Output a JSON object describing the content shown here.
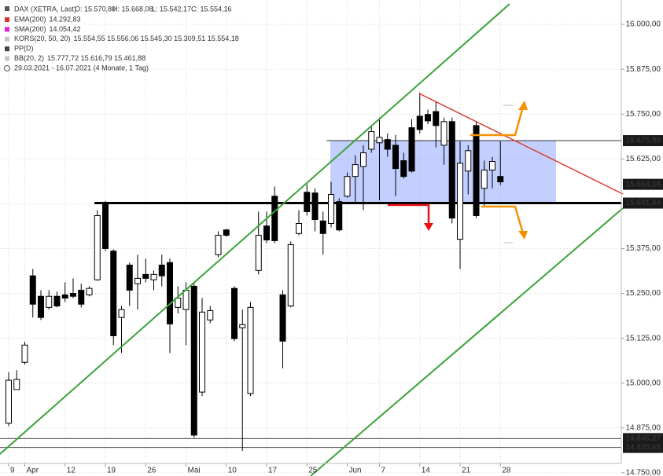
{
  "chart_data": {
    "type": "candlestick",
    "legend_box": {
      "instrument": "DAX (XETRA, Last)",
      "ohlc": [
        "O: 15.570,80",
        "H: 15.668,08",
        "L: 15.542,17",
        "C: 15.554,16"
      ],
      "indicators": [
        {
          "name": "EMA(200)",
          "value": "14.292,83",
          "color": "#e03030"
        },
        {
          "name": "SMA(200)",
          "value": "14.054,42",
          "color": "#e020e0"
        },
        {
          "name": "KORS(20, 50, 20)",
          "value": "15.554,55 15.556,06 15.545,30 15.309,51 15.554,18",
          "color": "#c8c8c8"
        },
        {
          "name": "PP(D)",
          "value": "",
          "color": "#444444"
        },
        {
          "name": "BB(20, 2)",
          "value": "15.777,72 15.616,79 15.461,88",
          "color": "#c8c8c8"
        }
      ],
      "range": "29.03.2021 - 16.07.2021 (4 Monate, 1 Tag)"
    },
    "categories": [
      "9",
      null,
      "Apr",
      null,
      null,
      null,
      null,
      "12",
      null,
      null,
      null,
      null,
      "19",
      null,
      null,
      null,
      null,
      "26",
      null,
      null,
      null,
      null,
      "Mai",
      null,
      null,
      null,
      null,
      "10",
      null,
      null,
      null,
      null,
      "17",
      null,
      null,
      null,
      null,
      "25",
      null,
      null,
      null,
      null,
      "Jun",
      null,
      null,
      null,
      "7",
      null,
      null,
      null,
      null,
      "14",
      null,
      null,
      null,
      null,
      "21",
      null,
      null,
      null,
      null,
      "28"
    ],
    "open": [
      14888,
      14982,
      15058,
      15299,
      15242,
      15211,
      15242,
      15246,
      15250,
      15259,
      15246,
      15288,
      15504,
      15368,
      15183,
      15329,
      15277,
      15303,
      15288,
      15329,
      15336,
      15211,
      15205,
      15270,
      14975,
      15176,
      15358,
      15427,
      15264,
      15154,
      14971,
      15314,
      15438,
      15521,
      15246,
      15215,
      15417,
      15532,
      15530,
      15452,
      15445,
      15506,
      15521,
      15576,
      15604,
      15652,
      15670,
      15679,
      15663,
      15620,
      15712,
      15744,
      15749,
      15757,
      15663,
      15729,
      15401,
      15591,
      15718,
      15543,
      15594,
      15576
    ],
    "high": [
      15030,
      15036,
      15115,
      15318,
      15259,
      15259,
      15255,
      15281,
      15292,
      15277,
      15270,
      15482,
      15508,
      15373,
      15215,
      15336,
      15358,
      15347,
      15314,
      15358,
      15347,
      15270,
      15281,
      15281,
      15237,
      15215,
      15423,
      15430,
      15270,
      15205,
      15226,
      15478,
      15478,
      15548,
      15259,
      15395,
      15482,
      15554,
      15543,
      15478,
      15561,
      15515,
      15587,
      15635,
      15663,
      15718,
      15740,
      15696,
      15692,
      15642,
      15736,
      15810,
      15762,
      15784,
      15740,
      15740,
      15674,
      15663,
      15729,
      15620,
      15631,
      15674
    ],
    "low": [
      14880,
      14982,
      15052,
      15183,
      15176,
      15205,
      15211,
      15226,
      15237,
      15211,
      15242,
      15285,
      15368,
      15106,
      15084,
      15215,
      15205,
      15281,
      15259,
      15270,
      15084,
      15194,
      15106,
      14848,
      14964,
      15167,
      15351,
      15408,
      15117,
      14811,
      14964,
      15303,
      15390,
      15390,
      15041,
      15211,
      15412,
      15467,
      15423,
      15358,
      15434,
      15423,
      15517,
      15504,
      15482,
      15642,
      15510,
      15631,
      15521,
      15570,
      15587,
      15696,
      15722,
      15657,
      15609,
      15445,
      15318,
      15526,
      15460,
      15495,
      15543,
      15552
    ],
    "close": [
      15008,
      15010,
      15106,
      15220,
      15183,
      15242,
      15215,
      15237,
      15242,
      15220,
      15264,
      15467,
      15375,
      15132,
      15205,
      15259,
      15292,
      15292,
      15303,
      15299,
      15165,
      15237,
      15259,
      14855,
      15198,
      15202,
      15412,
      15412,
      15124,
      15163,
      15211,
      15412,
      15399,
      15397,
      15117,
      15386,
      15445,
      15478,
      15456,
      15417,
      15526,
      15427,
      15576,
      15609,
      15642,
      15701,
      15685,
      15652,
      15598,
      15576,
      15591,
      15707,
      15731,
      15718,
      15729,
      15460,
      15613,
      15648,
      15467,
      15594,
      15618,
      15561
    ],
    "up_color": "#ffffff",
    "down_color": "#000000",
    "ylim": [
      14741,
      16068
    ],
    "yticks": [
      {
        "value": 14750,
        "label": "14.750,00"
      },
      {
        "value": 14875,
        "label": "14.875,00"
      },
      {
        "value": 15000,
        "label": "15.000,00"
      },
      {
        "value": 15125,
        "label": "15.125,00"
      },
      {
        "value": 15250,
        "label": "15.250,00"
      },
      {
        "value": 15375,
        "label": "15.375,00"
      },
      {
        "value": 15500,
        "label": "15.500,00"
      },
      {
        "value": 15625,
        "label": "15.625,00"
      },
      {
        "value": 15750,
        "label": "15.750,00"
      },
      {
        "value": 15875,
        "label": "15.875,00"
      },
      {
        "value": 16000,
        "label": "16.000,00"
      }
    ],
    "price_markers": [
      {
        "value": 15675.9,
        "label": "15.675,90"
      },
      {
        "value": 15554.18,
        "label": "15.554,18"
      },
      {
        "value": 15501.84,
        "label": "15.501,84"
      },
      {
        "value": 14845.27,
        "label": "14.845,27"
      },
      {
        "value": 14820.65,
        "label": "14.820,65"
      }
    ],
    "grid": true
  }
}
